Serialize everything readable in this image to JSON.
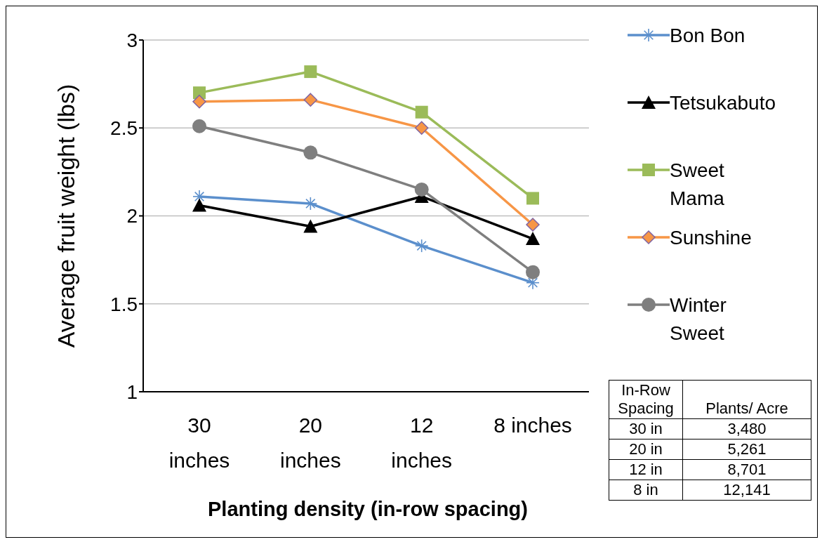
{
  "chart_data": {
    "type": "line",
    "xlabel": "Planting density (in-row spacing)",
    "ylabel": "Average fruit weight (lbs)",
    "categories": [
      "30 inches",
      "20 inches",
      "12 inches",
      "8 inches"
    ],
    "series": [
      {
        "name": "Bon Bon",
        "color": "#5b8fcc",
        "marker": "cross",
        "values": [
          2.11,
          2.07,
          1.83,
          1.62
        ]
      },
      {
        "name": "Tetsukabuto",
        "color": "#000000",
        "marker": "triangle",
        "values": [
          2.06,
          1.94,
          2.11,
          1.87
        ]
      },
      {
        "name": "Sweet Mama",
        "color": "#9bbb59",
        "marker": "square",
        "values": [
          2.7,
          2.82,
          2.59,
          2.1
        ]
      },
      {
        "name": "Sunshine",
        "color": "#f79646",
        "marker": "diamond",
        "values": [
          2.65,
          2.66,
          2.5,
          1.95
        ]
      },
      {
        "name": "Winter Sweet",
        "color": "#7f7f7f",
        "marker": "circle",
        "values": [
          2.51,
          2.36,
          2.15,
          1.68
        ]
      }
    ],
    "ylim": [
      1,
      3
    ],
    "yticks": [
      1,
      1.5,
      2,
      2.5,
      3
    ],
    "grid": "y",
    "legend": "right",
    "annotations": [
      "In-Row Spacing",
      "Plants/ Acre",
      "30 in",
      "3,480",
      "20 in",
      "5,261",
      "12 in",
      "8,701",
      "8 in",
      "12,141"
    ]
  }
}
